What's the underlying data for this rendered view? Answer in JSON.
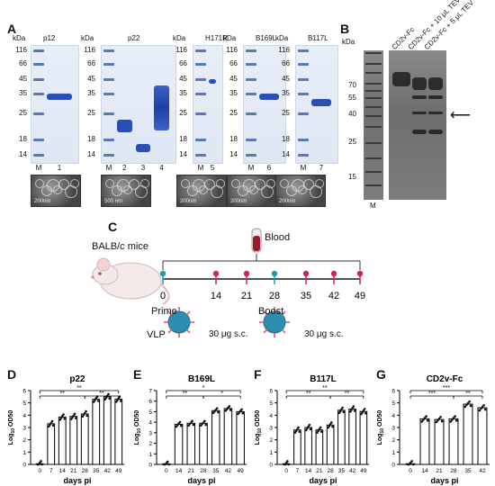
{
  "panel_letters": {
    "A": "A",
    "B": "B",
    "C": "C",
    "D": "D",
    "E": "E",
    "F": "F",
    "G": "G"
  },
  "panelA": {
    "kda_label": "kDa",
    "markers": [
      "116",
      "66",
      "45",
      "35",
      "25",
      "18",
      "14"
    ],
    "gels": [
      {
        "title": "p12",
        "lanes": [
          "M",
          "1"
        ]
      },
      {
        "title": "p22",
        "lanes": [
          "M",
          "2",
          "3",
          "4"
        ]
      },
      {
        "title": "H171R",
        "lanes": [
          "M",
          "5"
        ]
      },
      {
        "title": "B169L",
        "lanes": [
          "M",
          "6"
        ]
      },
      {
        "title": "B117L",
        "lanes": [
          "M",
          "7"
        ]
      }
    ],
    "em_labels": [
      "200nm",
      "500 nm",
      "200nm",
      "200nm",
      "200nm"
    ]
  },
  "panelB": {
    "kda_label": "kDa",
    "markers": [
      "70",
      "55",
      "40",
      "25",
      "15"
    ],
    "lane_labels": [
      "CD2v-Fc",
      "CD2v-Fc + 10 μL TEV",
      "CD2v-Fc + 5 μL TEV"
    ],
    "marker_lane": "M"
  },
  "panelC": {
    "mice": "BALB/c mice",
    "blood": "Blood",
    "days": [
      "0",
      "14",
      "21",
      "28",
      "35",
      "42",
      "49"
    ],
    "prime": "Prime",
    "boost": "Boost",
    "vlp": "VLP",
    "dose1": "30 μg s.c.",
    "dose2": "30 μg s.c.",
    "colors": {
      "prime": "#1a9bb0",
      "boost": "#d81f4f",
      "line": "#1a1a1a"
    }
  },
  "chart_data": [
    {
      "type": "bar",
      "title": "p22",
      "xlabel": "days pi",
      "ylabel": "Log10 OD50",
      "categories": [
        "0",
        "7",
        "14",
        "21",
        "28",
        "35",
        "42",
        "49"
      ],
      "values": [
        0.05,
        3.3,
        3.85,
        3.9,
        4.1,
        5.3,
        5.5,
        5.3
      ],
      "ylim": [
        0,
        6
      ],
      "sig": [
        {
          "from": "0",
          "to": "28",
          "label": "**"
        },
        {
          "from": "0",
          "to": "49",
          "label": "**"
        },
        {
          "from": "28",
          "to": "49",
          "label": "**"
        }
      ]
    },
    {
      "type": "bar",
      "title": "B169L",
      "xlabel": "days pi",
      "ylabel": "Log10 OD50",
      "categories": [
        "0",
        "14",
        "21",
        "28",
        "35",
        "42",
        "49"
      ],
      "values": [
        0.05,
        3.8,
        3.9,
        3.9,
        5.1,
        5.3,
        5.0
      ],
      "ylim": [
        0,
        7
      ],
      "sig": [
        {
          "from": "0",
          "to": "28",
          "label": "**"
        },
        {
          "from": "0",
          "to": "49",
          "label": "*"
        },
        {
          "from": "28",
          "to": "49",
          "label": "*"
        }
      ]
    },
    {
      "type": "bar",
      "title": "B117L",
      "xlabel": "days pi",
      "ylabel": "Log10 OD50",
      "categories": [
        "0",
        "7",
        "14",
        "21",
        "28",
        "35",
        "42",
        "49"
      ],
      "values": [
        0.05,
        2.8,
        3.0,
        2.8,
        3.2,
        4.4,
        4.5,
        4.3
      ],
      "ylim": [
        0,
        6
      ],
      "sig": [
        {
          "from": "0",
          "to": "28",
          "label": "**"
        },
        {
          "from": "0",
          "to": "49",
          "label": "**"
        },
        {
          "from": "28",
          "to": "49",
          "label": "**"
        }
      ]
    },
    {
      "type": "bar",
      "title": "CD2v-Fc",
      "xlabel": "days pi",
      "ylabel": "Log10 OD50",
      "categories": [
        "0",
        "14",
        "21",
        "28",
        "35",
        "42"
      ],
      "values": [
        0.05,
        3.7,
        3.65,
        3.7,
        4.9,
        4.6
      ],
      "ylim": [
        0,
        6
      ],
      "sig": [
        {
          "from": "0",
          "to": "28",
          "label": "***"
        },
        {
          "from": "0",
          "to": "42",
          "label": "***"
        },
        {
          "from": "28",
          "to": "42",
          "label": "**"
        }
      ]
    }
  ]
}
